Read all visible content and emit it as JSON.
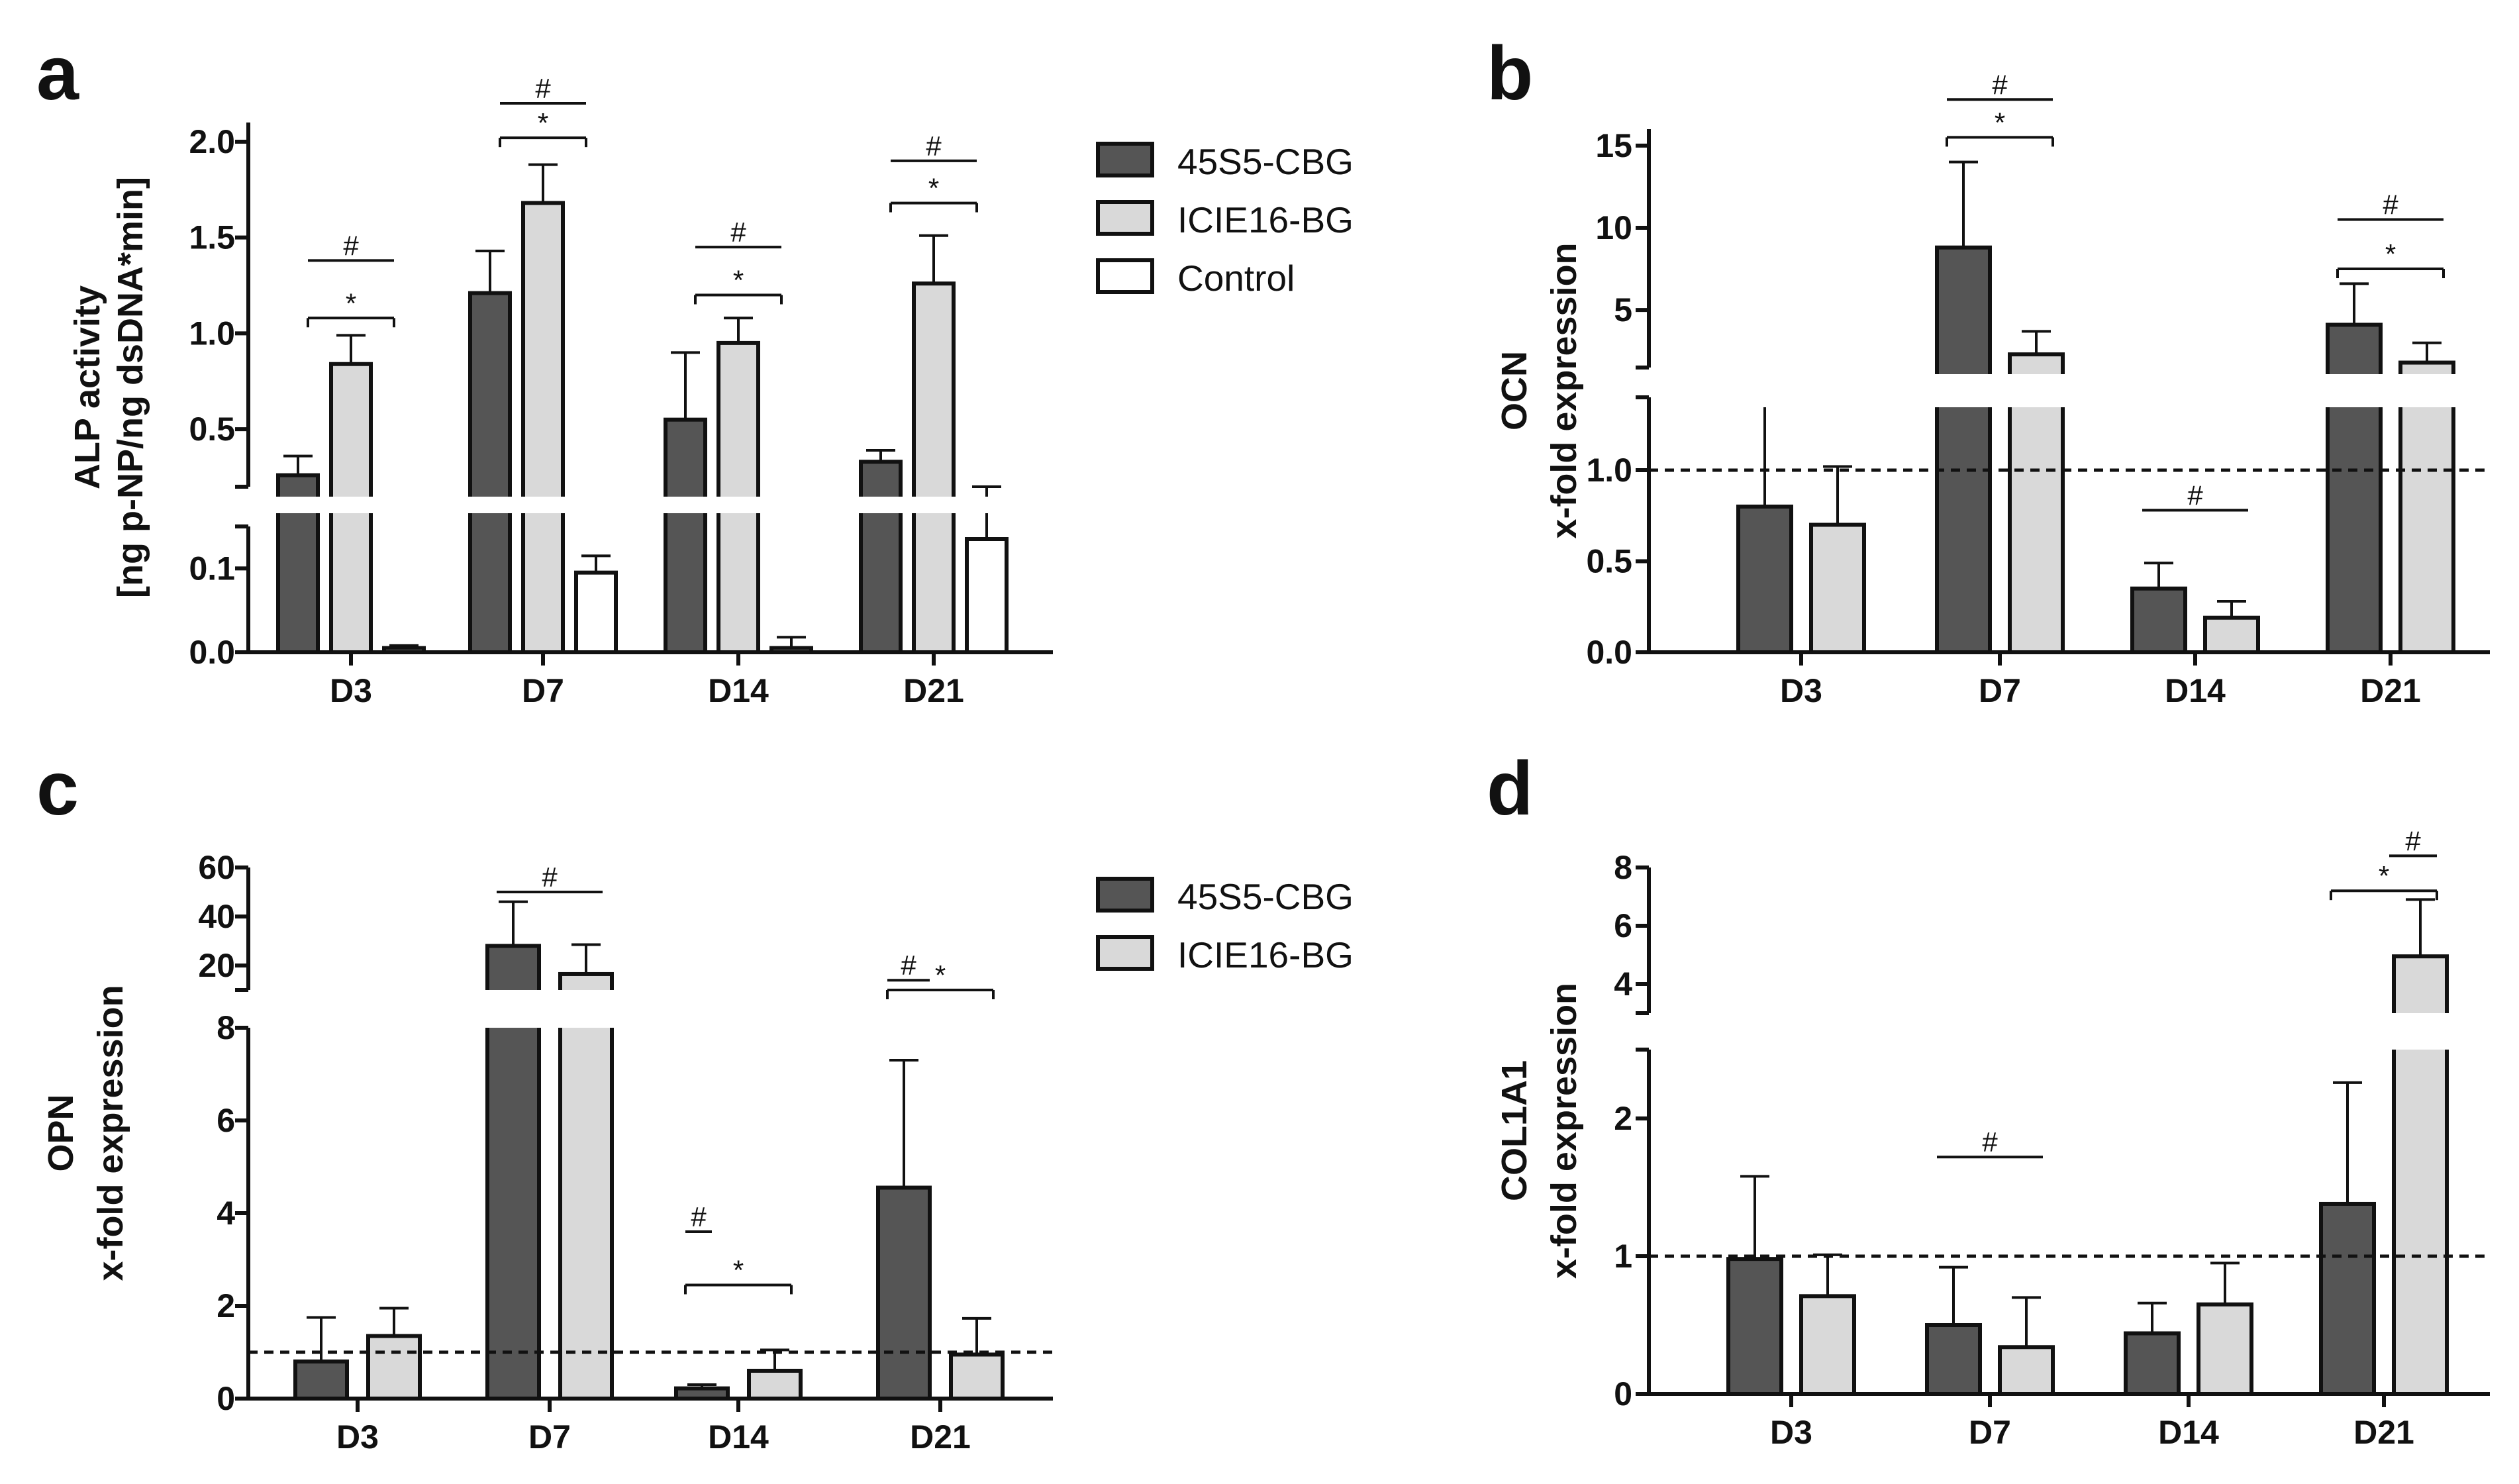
{
  "figure": {
    "colors": {
      "s45S5": "#555555",
      "sICIE16": "#d9d9d9",
      "sControl": "#ffffff",
      "axis": "#111111"
    }
  },
  "legends": [
    {
      "entries": [
        "45S5-CBG",
        "ICIE16-BG",
        "Control"
      ]
    },
    {
      "entries": [
        "45S5-CBG",
        "ICIE16-BG"
      ]
    }
  ],
  "chart_data": [
    {
      "panel": "a",
      "type": "bar",
      "ylabel": [
        "ALP activity",
        "[ng p-NP/ng dsDNA*min]"
      ],
      "categories": [
        "D3",
        "D7",
        "D14",
        "D21"
      ],
      "series": [
        {
          "name": "45S5-CBG",
          "values": [
            0.26,
            1.21,
            0.55,
            0.33
          ],
          "err": [
            0.1,
            0.22,
            0.35,
            0.06
          ]
        },
        {
          "name": "ICIE16-BG",
          "values": [
            0.84,
            1.68,
            0.95,
            1.26
          ],
          "err": [
            0.15,
            0.2,
            0.13,
            0.25
          ]
        },
        {
          "name": "Control",
          "values": [
            0.005,
            0.095,
            0.005,
            0.135
          ],
          "err": [
            0.003,
            0.02,
            0.013,
            0.025
          ]
        }
      ],
      "axis_break": {
        "lower": [
          0,
          0.15
        ],
        "upper": [
          0.2,
          2.1
        ]
      },
      "yticks": [
        0.0,
        0.1,
        0.5,
        1.0,
        1.5,
        2.0
      ],
      "ytick_labels": [
        "0.0",
        "0.1",
        "0.5",
        "1.0",
        "1.5",
        "2.0"
      ],
      "reference_line": null,
      "significance": [
        {
          "symbol": "#",
          "category": 0,
          "from": 0,
          "to": 1,
          "y": 1.38,
          "bracket": false
        },
        {
          "symbol": "*",
          "category": 0,
          "from": 0,
          "to": 1,
          "y": 1.08,
          "bracket": true
        },
        {
          "symbol": "#",
          "category": 1,
          "from": 0,
          "to": 1,
          "y": 2.2,
          "bracket": false
        },
        {
          "symbol": "*",
          "category": 1,
          "from": 0,
          "to": 1,
          "y": 2.02,
          "bracket": true
        },
        {
          "symbol": "#",
          "category": 2,
          "from": 0,
          "to": 1,
          "y": 1.45,
          "bracket": false
        },
        {
          "symbol": "*",
          "category": 2,
          "from": 0,
          "to": 1,
          "y": 1.2,
          "bracket": true
        },
        {
          "symbol": "#",
          "category": 3,
          "from": 0,
          "to": 1,
          "y": 1.9,
          "bracket": false
        },
        {
          "symbol": "*",
          "category": 3,
          "from": 0,
          "to": 1,
          "y": 1.68,
          "bracket": true
        }
      ]
    },
    {
      "panel": "b",
      "type": "bar",
      "ylabel": [
        "OCN",
        "x-fold expression"
      ],
      "categories": [
        "D3",
        "D7",
        "D14",
        "D21"
      ],
      "series": [
        {
          "name": "45S5-CBG",
          "values": [
            0.8,
            8.8,
            0.35,
            4.1
          ],
          "err": [
            0.58,
            5.2,
            0.14,
            2.5
          ]
        },
        {
          "name": "ICIE16-BG",
          "values": [
            0.7,
            2.3,
            0.19,
            1.8
          ],
          "err": [
            0.32,
            1.4,
            0.09,
            1.2
          ]
        }
      ],
      "axis_break": {
        "lower": [
          0,
          1.4
        ],
        "upper": [
          1.5,
          16
        ]
      },
      "yticks": [
        0.0,
        0.5,
        1.0,
        5,
        10,
        15
      ],
      "ytick_labels": [
        "0.0",
        "0.5",
        "1.0",
        "5",
        "10",
        "15"
      ],
      "reference_line": 1.0,
      "significance": [
        {
          "symbol": "#",
          "category": 1,
          "from": 0,
          "to": 1,
          "y": 17.8,
          "bracket": false
        },
        {
          "symbol": "*",
          "category": 1,
          "from": 0,
          "to": 1,
          "y": 15.5,
          "bracket": true
        },
        {
          "symbol": "#",
          "category": 2,
          "from": 0,
          "to": 1,
          "y": 0.78,
          "bracket": false
        },
        {
          "symbol": "#",
          "category": 3,
          "from": 0,
          "to": 1,
          "y": 10.5,
          "bracket": false
        },
        {
          "symbol": "*",
          "category": 3,
          "from": 0,
          "to": 1,
          "y": 7.5,
          "bracket": true
        }
      ]
    },
    {
      "panel": "c",
      "type": "bar",
      "ylabel": [
        "OPN",
        "x-fold expression"
      ],
      "categories": [
        "D3",
        "D7",
        "D14",
        "D21"
      ],
      "series": [
        {
          "name": "45S5-CBG",
          "values": [
            0.8,
            28,
            0.22,
            4.55
          ],
          "err": [
            0.95,
            18,
            0.08,
            2.75
          ]
        },
        {
          "name": "ICIE16-BG",
          "values": [
            1.35,
            16.5,
            0.6,
            0.95
          ],
          "err": [
            0.6,
            12,
            0.45,
            0.78
          ]
        }
      ],
      "axis_break": {
        "lower": [
          0,
          8
        ],
        "upper": [
          10,
          60
        ]
      },
      "yticks": [
        0,
        2,
        4,
        6,
        8,
        20,
        40,
        60
      ],
      "ytick_labels": [
        "0",
        "2",
        "4",
        "6",
        "8",
        "20",
        "40",
        "60"
      ],
      "reference_line": 1.0,
      "significance": [
        {
          "symbol": "#",
          "category": 1,
          "from": 0,
          "to": 1,
          "y": 50,
          "bracket": false
        },
        {
          "symbol": "#",
          "category": 2,
          "from": 0,
          "to": 0.25,
          "y": 3.6,
          "bracket": false
        },
        {
          "symbol": "*",
          "category": 2,
          "from": 0,
          "to": 1,
          "y": 2.45,
          "bracket": true
        },
        {
          "symbol": "#",
          "category": 3,
          "from": 0,
          "to": 0.4,
          "y": 14,
          "bracket": false
        },
        {
          "symbol": "*",
          "category": 3,
          "from": 0,
          "to": 1,
          "y": 8.2,
          "bracket": true
        }
      ]
    },
    {
      "panel": "d",
      "type": "bar",
      "ylabel": [
        "COL1A1",
        "x-fold expression"
      ],
      "categories": [
        "D3",
        "D7",
        "D14",
        "D21"
      ],
      "series": [
        {
          "name": "45S5-CBG",
          "values": [
            0.98,
            0.5,
            0.44,
            1.38
          ],
          "err": [
            0.6,
            0.42,
            0.22,
            0.88
          ]
        },
        {
          "name": "ICIE16-BG",
          "values": [
            0.71,
            0.34,
            0.65,
            4.95
          ],
          "err": [
            0.3,
            0.36,
            0.3,
            1.95
          ]
        }
      ],
      "axis_break": {
        "lower": [
          0,
          2.5
        ],
        "upper": [
          3,
          8
        ]
      },
      "yticks": [
        0,
        1,
        2,
        4,
        6,
        8
      ],
      "ytick_labels": [
        "0",
        "1",
        "2",
        "4",
        "6",
        "8"
      ],
      "reference_line": 1.0,
      "significance": [
        {
          "symbol": "#",
          "category": 1,
          "from": 0,
          "to": 1,
          "y": 1.72,
          "bracket": false
        },
        {
          "symbol": "#",
          "category": 3,
          "from": 0.55,
          "to": 1,
          "y": 8.4,
          "bracket": false
        },
        {
          "symbol": "*",
          "category": 3,
          "from": 0,
          "to": 1,
          "y": 7.2,
          "bracket": true
        }
      ]
    }
  ]
}
